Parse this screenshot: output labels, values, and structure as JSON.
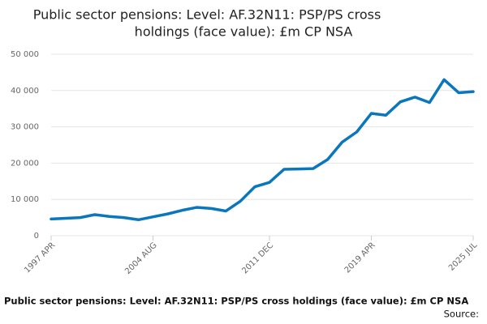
{
  "chart_data": {
    "type": "line",
    "title": [
      "Public sector pensions: Level: AF.32N11: PSP/PS cross",
      "holdings (face value): £m CP NSA"
    ],
    "footer_title": "Public sector pensions: Level: AF.32N11: PSP/PS cross holdings (face value): £m CP NSA",
    "source": "Source:",
    "categories": [
      "1997 APR",
      null,
      null,
      null,
      null,
      null,
      null,
      "2004 AUG",
      null,
      null,
      null,
      null,
      null,
      null,
      null,
      "2011 DEC",
      null,
      null,
      null,
      null,
      null,
      null,
      "2019 APR",
      null,
      null,
      null,
      null,
      null,
      null,
      "2025 JUL"
    ],
    "series": [
      {
        "name": "PSP/PS cross holdings",
        "color": "#0a77bd",
        "values": [
          4600,
          4800,
          5000,
          5800,
          5300,
          5000,
          4400,
          5200,
          6000,
          7000,
          7800,
          7500,
          6800,
          9500,
          13500,
          14700,
          18300,
          18400,
          18500,
          21000,
          25800,
          28600,
          33700,
          33200,
          36900,
          38200,
          36700,
          43000,
          39400,
          39700
        ]
      }
    ],
    "ylim": [
      0,
      50000
    ],
    "yticks": [
      0,
      {
        "value": 10000,
        "label": "10 000"
      },
      {
        "value": 20000,
        "label": "20 000"
      },
      {
        "value": 30000,
        "label": "30 000"
      },
      {
        "value": 40000,
        "label": "40 000"
      },
      {
        "value": 50000,
        "label": "50 000"
      }
    ],
    "grid": true
  }
}
